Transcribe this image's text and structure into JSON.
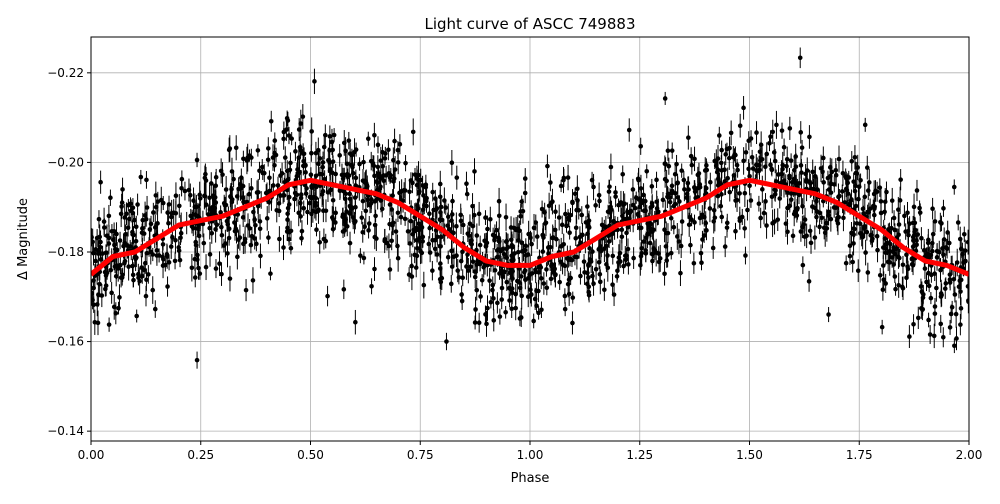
{
  "chart_data": {
    "type": "scatter",
    "title": "Light curve of ASCC 749883",
    "xlabel": "Phase",
    "ylabel": "Δ Magnitude",
    "xlim": [
      0.0,
      2.0
    ],
    "ylim": [
      -0.228,
      -0.1378
    ],
    "y_inverted": true,
    "grid": true,
    "x_ticks": [
      "0.00",
      "0.25",
      "0.50",
      "0.75",
      "1.00",
      "1.25",
      "1.50",
      "1.75",
      "2.00"
    ],
    "y_ticks": [
      "−0.22",
      "−0.20",
      "−0.18",
      "−0.16",
      "−0.14"
    ],
    "colors": {
      "points": "#000000",
      "binned_curve": "#ff0000",
      "grid": "#b0b0b0"
    },
    "series": [
      {
        "type": "line",
        "x": [
          0.0,
          0.05,
          0.1,
          0.15,
          0.2,
          0.25,
          0.3,
          0.35,
          0.4,
          0.45,
          0.5,
          0.55,
          0.6,
          0.65,
          0.7,
          0.75,
          0.8,
          0.85,
          0.9,
          0.95,
          1.0,
          1.05,
          1.1,
          1.15,
          1.2,
          1.25,
          1.3,
          1.35,
          1.4,
          1.45,
          1.5,
          1.55,
          1.6,
          1.65,
          1.7,
          1.75,
          1.8,
          1.85,
          1.9,
          1.95,
          2.0
        ],
        "y": [
          -0.175,
          -0.179,
          -0.18,
          -0.183,
          -0.186,
          -0.187,
          -0.188,
          -0.19,
          -0.192,
          -0.195,
          -0.196,
          -0.195,
          -0.194,
          -0.193,
          -0.191,
          -0.188,
          -0.185,
          -0.181,
          -0.178,
          -0.177,
          -0.177,
          -0.179,
          -0.18,
          -0.183,
          -0.186,
          -0.187,
          -0.188,
          -0.19,
          -0.192,
          -0.195,
          -0.196,
          -0.195,
          -0.194,
          -0.193,
          -0.191,
          -0.188,
          -0.185,
          -0.181,
          -0.178,
          -0.177,
          -0.175
        ]
      }
    ]
  }
}
